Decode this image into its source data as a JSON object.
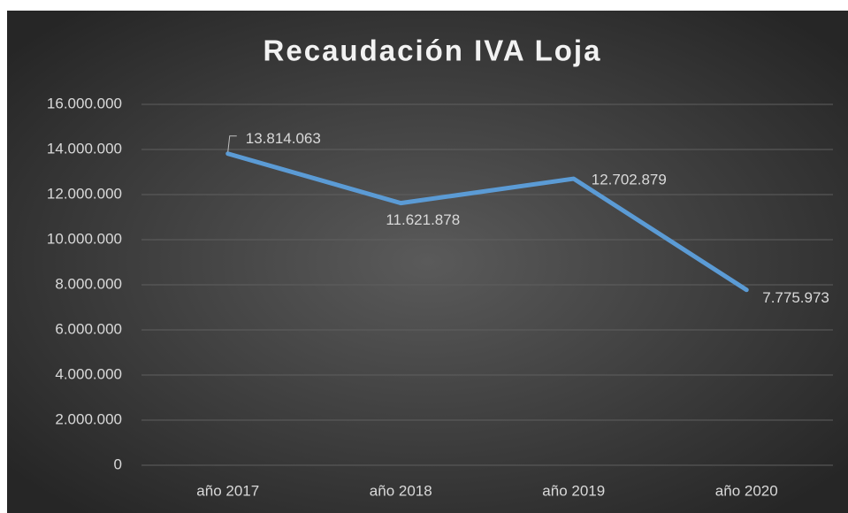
{
  "chart_data": {
    "type": "line",
    "title": "Recaudación IVA Loja",
    "categories": [
      "año 2017",
      "año 2018",
      "año 2019",
      "año 2020"
    ],
    "series": [
      {
        "name": "Recaudación IVA Loja",
        "color": "#5b9bd5",
        "values": [
          13814063,
          11621878,
          12702879,
          7775973
        ],
        "value_labels": [
          "13.814.063",
          "11.621.878",
          "12.702.879",
          "7.775.973"
        ]
      }
    ],
    "ylim": [
      0,
      16000000
    ],
    "yticks": [
      0,
      {
        "value": 2000000,
        "label": "2.000.000"
      },
      {
        "value": 4000000,
        "label": "4.000.000"
      },
      {
        "value": 6000000,
        "label": "6.000.000"
      },
      {
        "value": 8000000,
        "label": "8.000.000"
      },
      {
        "value": 10000000,
        "label": "10.000.000"
      },
      {
        "value": 12000000,
        "label": "12.000.000"
      },
      {
        "value": 14000000,
        "label": "14.000.000"
      },
      {
        "value": 16000000,
        "label": "16.000.000"
      }
    ],
    "grid": true
  }
}
